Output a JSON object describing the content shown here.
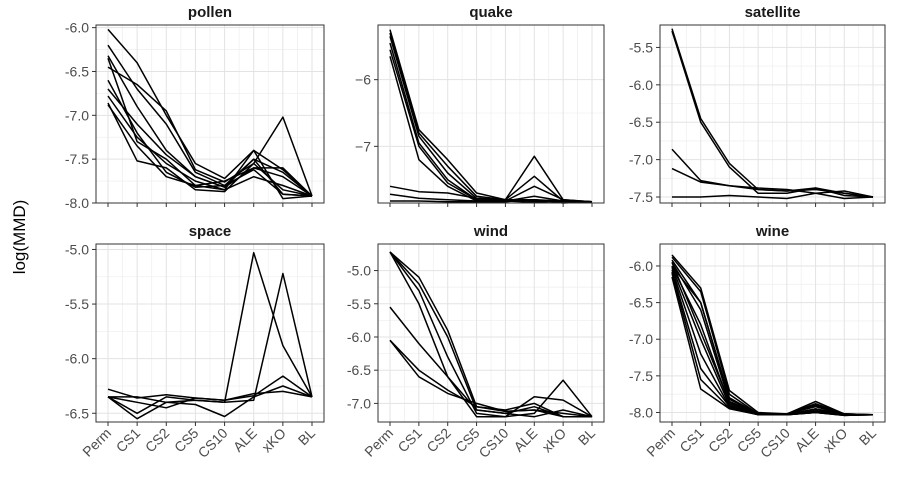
{
  "figure": {
    "ylabel": "log(MMD)"
  },
  "chart_data": {
    "type": "line",
    "categories": [
      "Perm",
      "CS1",
      "CS2",
      "CS5",
      "CS10",
      "ALE",
      "xKO",
      "BL"
    ],
    "grid": true,
    "panels": [
      {
        "title": "pollen",
        "ylim": [
          -8.0,
          -5.97
        ],
        "yticks": [
          -8.0,
          -7.5,
          -7.0,
          -6.5,
          -6.0
        ],
        "ytick_labels": [
          "-8.0",
          "-7.5",
          "-7.0",
          "-6.5",
          "-6.0"
        ],
        "series": [
          {
            "values": [
              -6.02,
              -6.4,
              -7.0,
              -7.55,
              -7.72,
              -7.4,
              -7.62,
              -7.92
            ]
          },
          {
            "values": [
              -6.2,
              -6.7,
              -7.1,
              -7.65,
              -7.8,
              -7.5,
              -7.9,
              -7.92
            ]
          },
          {
            "values": [
              -6.32,
              -6.9,
              -7.4,
              -7.7,
              -7.82,
              -7.6,
              -7.7,
              -7.92
            ]
          },
          {
            "values": [
              -6.35,
              -7.3,
              -7.5,
              -7.8,
              -7.85,
              -7.4,
              -7.95,
              -7.92
            ]
          },
          {
            "values": [
              -6.45,
              -6.65,
              -6.95,
              -7.62,
              -7.76,
              -7.55,
              -7.02,
              -7.92
            ]
          },
          {
            "values": [
              -6.7,
              -7.1,
              -7.45,
              -7.7,
              -7.82,
              -7.5,
              -7.65,
              -7.92
            ]
          },
          {
            "values": [
              -6.78,
              -7.25,
              -7.55,
              -7.75,
              -7.85,
              -7.7,
              -7.8,
              -7.92
            ]
          },
          {
            "values": [
              -6.86,
              -7.52,
              -7.6,
              -7.85,
              -7.87,
              -7.55,
              -7.85,
              -7.92
            ]
          },
          {
            "values": [
              -6.88,
              -7.35,
              -7.7,
              -7.8,
              -7.75,
              -7.6,
              -7.6,
              -7.92
            ]
          },
          {
            "values": [
              -6.6,
              -7.2,
              -7.65,
              -7.82,
              -7.8,
              -7.62,
              -7.9,
              -7.92
            ]
          }
        ]
      },
      {
        "title": "quake",
        "ylim": [
          -7.85,
          -5.18
        ],
        "yticks": [
          -7,
          -6
        ],
        "ytick_labels": [
          "−7",
          "−6"
        ],
        "series": [
          {
            "values": [
              -5.25,
              -6.75,
              -7.2,
              -7.7,
              -7.8,
              -7.82,
              -7.82,
              -7.83
            ]
          },
          {
            "values": [
              -5.3,
              -6.8,
              -7.3,
              -7.75,
              -7.8,
              -7.15,
              -7.8,
              -7.83
            ]
          },
          {
            "values": [
              -5.35,
              -6.85,
              -7.4,
              -7.78,
              -7.8,
              -7.45,
              -7.82,
              -7.83
            ]
          },
          {
            "values": [
              -5.45,
              -6.95,
              -7.5,
              -7.8,
              -7.82,
              -7.6,
              -7.8,
              -7.83
            ]
          },
          {
            "values": [
              -5.55,
              -7.0,
              -7.55,
              -7.8,
              -7.82,
              -7.75,
              -7.82,
              -7.83
            ]
          },
          {
            "values": [
              -5.65,
              -7.2,
              -7.6,
              -7.82,
              -7.82,
              -7.8,
              -7.84,
              -7.83
            ]
          },
          {
            "values": [
              -7.6,
              -7.68,
              -7.7,
              -7.78,
              -7.8,
              -7.8,
              -7.82,
              -7.83
            ]
          },
          {
            "values": [
              -7.72,
              -7.78,
              -7.8,
              -7.82,
              -7.82,
              -7.84,
              -7.82,
              -7.83
            ]
          },
          {
            "values": [
              -7.82,
              -7.82,
              -7.83,
              -7.83,
              -7.83,
              -7.8,
              -7.85,
              -7.83
            ]
          }
        ]
      },
      {
        "title": "satellite",
        "ylim": [
          -7.58,
          -5.2
        ],
        "yticks": [
          -7.5,
          -7.0,
          -6.5,
          -6.0,
          -5.5
        ],
        "ytick_labels": [
          "-7.5",
          "-7.0",
          "-6.5",
          "-6.0",
          "-5.5"
        ],
        "series": [
          {
            "values": [
              -5.25,
              -6.45,
              -7.05,
              -7.4,
              -7.42,
              -7.4,
              -7.45,
              -7.5
            ]
          },
          {
            "values": [
              -5.28,
              -6.5,
              -7.1,
              -7.45,
              -7.45,
              -7.38,
              -7.48,
              -7.5
            ]
          },
          {
            "values": [
              -6.86,
              -7.28,
              -7.35,
              -7.38,
              -7.4,
              -7.45,
              -7.42,
              -7.5
            ]
          },
          {
            "values": [
              -7.12,
              -7.3,
              -7.35,
              -7.4,
              -7.42,
              -7.38,
              -7.45,
              -7.5
            ]
          },
          {
            "values": [
              -7.5,
              -7.5,
              -7.48,
              -7.5,
              -7.52,
              -7.45,
              -7.52,
              -7.5
            ]
          }
        ]
      },
      {
        "title": "space",
        "ylim": [
          -6.58,
          -4.95
        ],
        "yticks": [
          -6.5,
          -6.0,
          -5.5,
          -5.0
        ],
        "ytick_labels": [
          "-6.5",
          "-6.0",
          "-5.5",
          "-5.0"
        ],
        "series": [
          {
            "values": [
              -6.35,
              -6.35,
              -6.4,
              -6.38,
              -6.4,
              -5.03,
              -5.88,
              -6.35
            ]
          },
          {
            "values": [
              -6.35,
              -6.5,
              -6.35,
              -6.38,
              -6.4,
              -6.38,
              -5.22,
              -6.35
            ]
          },
          {
            "values": [
              -6.28,
              -6.36,
              -6.33,
              -6.36,
              -6.38,
              -6.34,
              -6.16,
              -6.35
            ]
          },
          {
            "values": [
              -6.35,
              -6.55,
              -6.4,
              -6.42,
              -6.53,
              -6.35,
              -6.25,
              -6.35
            ]
          },
          {
            "values": [
              -6.35,
              -6.4,
              -6.45,
              -6.36,
              -6.38,
              -6.32,
              -6.3,
              -6.35
            ]
          }
        ]
      },
      {
        "title": "wind",
        "ylim": [
          -7.28,
          -4.6
        ],
        "yticks": [
          -7.0,
          -6.5,
          -6.0,
          -5.5,
          -5.0
        ],
        "ytick_labels": [
          "-7.0",
          "-6.5",
          "-6.0",
          "-5.5",
          "-5.0"
        ],
        "series": [
          {
            "values": [
              -4.72,
              -5.1,
              -5.9,
              -7.05,
              -7.12,
              -7.1,
              -7.15,
              -7.2
            ]
          },
          {
            "values": [
              -4.72,
              -5.3,
              -6.3,
              -7.15,
              -7.2,
              -7.15,
              -6.65,
              -7.2
            ]
          },
          {
            "values": [
              -4.72,
              -5.5,
              -6.6,
              -7.2,
              -7.2,
              -6.9,
              -6.95,
              -7.2
            ]
          },
          {
            "values": [
              -5.55,
              -6.1,
              -6.6,
              -7.1,
              -7.15,
              -7.2,
              -7.1,
              -7.2
            ]
          },
          {
            "values": [
              -6.05,
              -6.5,
              -6.8,
              -7.05,
              -7.1,
              -7.0,
              -7.2,
              -7.2
            ]
          },
          {
            "values": [
              -6.05,
              -6.6,
              -6.85,
              -7.0,
              -7.12,
              -7.1,
              -7.2,
              -7.2
            ]
          },
          {
            "values": [
              -4.72,
              -5.2,
              -6.0,
              -7.1,
              -7.15,
              -7.05,
              -7.2,
              -7.2
            ]
          }
        ]
      },
      {
        "title": "wine",
        "ylim": [
          -8.13,
          -5.7
        ],
        "yticks": [
          -8.0,
          -7.5,
          -7.0,
          -6.5,
          -6.0
        ],
        "ytick_labels": [
          "-8.0",
          "-7.5",
          "-7.0",
          "-6.5",
          "-6.0"
        ],
        "series": [
          {
            "values": [
              -5.85,
              -6.3,
              -7.7,
              -8.0,
              -8.02,
              -7.85,
              -8.02,
              -8.03
            ]
          },
          {
            "values": [
              -5.88,
              -6.35,
              -7.75,
              -8.02,
              -8.02,
              -7.9,
              -8.02,
              -8.03
            ]
          },
          {
            "values": [
              -5.92,
              -6.5,
              -7.8,
              -8.02,
              -8.02,
              -7.92,
              -8.03,
              -8.03
            ]
          },
          {
            "values": [
              -5.95,
              -6.6,
              -7.85,
              -8.02,
              -8.03,
              -7.95,
              -8.03,
              -8.03
            ]
          },
          {
            "values": [
              -6.0,
              -6.8,
              -7.88,
              -8.02,
              -8.03,
              -7.95,
              -8.03,
              -8.03
            ]
          },
          {
            "values": [
              -6.02,
              -7.0,
              -7.9,
              -8.03,
              -8.03,
              -7.98,
              -8.03,
              -8.03
            ]
          },
          {
            "values": [
              -6.05,
              -7.2,
              -7.92,
              -8.03,
              -8.03,
              -8.0,
              -8.03,
              -8.03
            ]
          },
          {
            "values": [
              -6.08,
              -7.4,
              -7.92,
              -8.03,
              -8.03,
              -8.0,
              -8.04,
              -8.03
            ]
          },
          {
            "values": [
              -6.1,
              -7.55,
              -7.94,
              -8.03,
              -8.03,
              -8.0,
              -8.04,
              -8.03
            ]
          },
          {
            "values": [
              -6.15,
              -7.68,
              -7.95,
              -8.03,
              -8.03,
              -7.9,
              -8.04,
              -8.03
            ]
          },
          {
            "values": [
              -6.0,
              -6.5,
              -7.82,
              -8.02,
              -8.02,
              -7.88,
              -8.02,
              -8.03
            ]
          },
          {
            "values": [
              -5.95,
              -6.9,
              -7.86,
              -8.02,
              -8.03,
              -7.96,
              -8.03,
              -8.03
            ]
          }
        ]
      }
    ]
  }
}
